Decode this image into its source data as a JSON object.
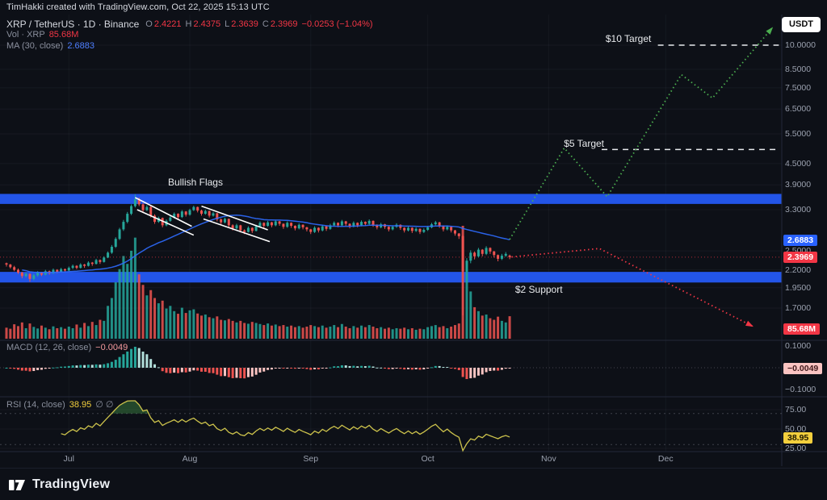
{
  "attribution": {
    "text": "TimHakki created with TradingView.com, Oct 22, 2025 15:13 UTC"
  },
  "header": {
    "symbol": "XRP / TetherUS · 1D · Binance",
    "ohlc": [
      {
        "k": "O",
        "v": "2.4221"
      },
      {
        "k": "H",
        "v": "2.4375"
      },
      {
        "k": "L",
        "v": "2.3639"
      },
      {
        "k": "C",
        "v": "2.3969"
      }
    ],
    "change": "−0.0253 (−1.04%)",
    "volume_label": "Vol · XRP",
    "volume_value": "85.68M",
    "ma_label": "MA (30, close)",
    "ma_value": "2.6883",
    "currency_button": "USDT"
  },
  "panes": {
    "macd": {
      "label": "MACD (12, 26, close)",
      "value": "−0.0049"
    },
    "rsi": {
      "label": "RSI (14, close)",
      "value": "38.95",
      "extra": "∅  ∅"
    }
  },
  "axes": {
    "price_ticks": [
      {
        "label": "10.0000",
        "value": 10
      },
      {
        "label": "8.5000",
        "value": 8.5
      },
      {
        "label": "7.5000",
        "value": 7.5
      },
      {
        "label": "6.5000",
        "value": 6.5
      },
      {
        "label": "5.5000",
        "value": 5.5
      },
      {
        "label": "4.5000",
        "value": 4.5
      },
      {
        "label": "3.9000",
        "value": 3.9
      },
      {
        "label": "3.3000",
        "value": 3.3
      },
      {
        "label": "2.5000",
        "value": 2.5
      },
      {
        "label": "2.2000",
        "value": 2.2
      },
      {
        "label": "1.9500",
        "value": 1.95
      },
      {
        "label": "1.7000",
        "value": 1.7
      }
    ],
    "price_badges": [
      {
        "label": "2.6883",
        "value": 2.6883,
        "bg": "#2962ff",
        "fg": "#ffffff"
      },
      {
        "label": "2.3969",
        "value": 2.3969,
        "bg": "#f23645",
        "fg": "#ffffff"
      }
    ],
    "volume_badge": {
      "label": "85.68M",
      "bg": "#f23645",
      "fg": "#ffffff"
    },
    "macd_ticks": [
      {
        "label": "0.1000",
        "value": 0.1
      },
      {
        "label": "−0.1000",
        "value": -0.1
      }
    ],
    "macd_badge": {
      "label": "−0.0049",
      "bg": "#fbc4c2",
      "fg": "#40181a"
    },
    "rsi_ticks": [
      {
        "label": "75.00",
        "value": 75
      },
      {
        "label": "50.00",
        "value": 50
      },
      {
        "label": "25.00",
        "value": 25
      }
    ],
    "rsi_badge": {
      "label": "38.95",
      "value": 38.95,
      "bg": "#f3cf3d",
      "fg": "#1c1600"
    },
    "time_ticks": [
      {
        "label": "Jul",
        "day": 16
      },
      {
        "label": "Aug",
        "day": 47
      },
      {
        "label": "Sep",
        "day": 78
      },
      {
        "label": "Oct",
        "day": 108
      },
      {
        "label": "Nov",
        "day": 139
      },
      {
        "label": "Dec",
        "day": 169
      }
    ]
  },
  "footer": {
    "brand": "TradingView"
  },
  "colors": {
    "up": "#26a69a",
    "down": "#ef5350",
    "accent_red": "#f23645",
    "accent_blue": "#2962ff",
    "band": "#2355e8",
    "projection_green": "#4caf50",
    "projection_red": "#f23645",
    "rsi_line": "#cdc34c",
    "ma_line": "#2e6bff",
    "target_dash": "#e8eaed"
  },
  "chart_data": {
    "type": "candlestick",
    "symbol": "XRP/USDT",
    "exchange": "Binance",
    "timeframe": "1D",
    "scale": "log",
    "date_range": [
      "2025-06-15",
      "2025-10-22"
    ],
    "visible_price_range": [
      1.5,
      11.5
    ],
    "last_price": 2.3969,
    "ma30_last": 2.6883,
    "volume_last_m": 85.68,
    "macd_last": -0.0049,
    "rsi_last": 38.95,
    "levels": {
      "resistance_band": [
        3.43,
        3.67
      ],
      "support_band": [
        2.02,
        2.17
      ],
      "target_high": {
        "price": 10,
        "from_day": 167,
        "to_day": 198
      },
      "target_mid": {
        "price": 4.95,
        "from_day": 152.6,
        "to_day": 198
      }
    },
    "annotations": {
      "bullish_flags": {
        "text": "Bullish Flags",
        "at": [
          41.4,
          3.97
        ]
      },
      "target10": {
        "text": "$10 Target",
        "at": [
          153.6,
          10.45
        ]
      },
      "target5": {
        "text": "$5 Target",
        "at": [
          142.9,
          5.15
        ]
      },
      "support2": {
        "text": "$2 Support",
        "at": [
          130.4,
          1.93
        ]
      },
      "flag_channels": [
        {
          "from": [
            33,
            3.58
          ],
          "to": [
            47.5,
            2.95
          ]
        },
        {
          "from": [
            33.5,
            3.3
          ],
          "to": [
            48,
            2.78
          ]
        },
        {
          "from": [
            50,
            3.38
          ],
          "to": [
            67,
            2.88
          ]
        },
        {
          "from": [
            50.5,
            3.1
          ],
          "to": [
            67.5,
            2.66
          ]
        }
      ],
      "green_projection": [
        [
          129,
          2.7
        ],
        [
          143,
          5.0
        ],
        [
          154,
          3.6
        ],
        [
          173,
          8.2
        ],
        [
          181,
          7.0
        ],
        [
          196.5,
          11.3
        ]
      ],
      "red_projection": [
        [
          129.5,
          2.4
        ],
        [
          152,
          2.54
        ],
        [
          191.5,
          1.5
        ]
      ]
    },
    "candles": [
      [
        2.3,
        2.31,
        2.25,
        2.28,
        42
      ],
      [
        2.28,
        2.29,
        2.22,
        2.24,
        38
      ],
      [
        2.24,
        2.26,
        2.18,
        2.2,
        55
      ],
      [
        2.2,
        2.22,
        2.14,
        2.16,
        48
      ],
      [
        2.16,
        2.17,
        2.08,
        2.11,
        62
      ],
      [
        2.11,
        2.16,
        2.09,
        2.14,
        40
      ],
      [
        2.14,
        2.15,
        2.03,
        2.07,
        58
      ],
      [
        2.07,
        2.14,
        2.05,
        2.12,
        45
      ],
      [
        2.12,
        2.18,
        2.1,
        2.16,
        39
      ],
      [
        2.16,
        2.17,
        2.11,
        2.13,
        50
      ],
      [
        2.13,
        2.2,
        2.12,
        2.18,
        42
      ],
      [
        2.18,
        2.19,
        2.13,
        2.15,
        36
      ],
      [
        2.15,
        2.22,
        2.14,
        2.2,
        47
      ],
      [
        2.2,
        2.21,
        2.15,
        2.17,
        40
      ],
      [
        2.17,
        2.23,
        2.16,
        2.21,
        44
      ],
      [
        2.21,
        2.22,
        2.17,
        2.19,
        38
      ],
      [
        2.19,
        2.25,
        2.18,
        2.23,
        46
      ],
      [
        2.23,
        2.28,
        2.21,
        2.26,
        40
      ],
      [
        2.26,
        2.27,
        2.21,
        2.23,
        54
      ],
      [
        2.23,
        2.3,
        2.22,
        2.28,
        42
      ],
      [
        2.28,
        2.29,
        2.23,
        2.26,
        60
      ],
      [
        2.26,
        2.33,
        2.25,
        2.31,
        48
      ],
      [
        2.31,
        2.32,
        2.26,
        2.29,
        64
      ],
      [
        2.29,
        2.37,
        2.28,
        2.35,
        52
      ],
      [
        2.35,
        2.36,
        2.29,
        2.32,
        72
      ],
      [
        2.32,
        2.41,
        2.31,
        2.39,
        68
      ],
      [
        2.39,
        2.49,
        2.38,
        2.47,
        125
      ],
      [
        2.47,
        2.6,
        2.45,
        2.57,
        155
      ],
      [
        2.57,
        2.74,
        2.55,
        2.71,
        215
      ],
      [
        2.71,
        2.92,
        2.69,
        2.89,
        265
      ],
      [
        2.89,
        3.08,
        2.86,
        3.04,
        315
      ],
      [
        3.04,
        3.25,
        3.01,
        3.21,
        285
      ],
      [
        3.21,
        3.42,
        3.18,
        3.38,
        335
      ],
      [
        3.38,
        3.66,
        3.35,
        3.54,
        385
      ],
      [
        3.54,
        3.58,
        3.38,
        3.42,
        245
      ],
      [
        3.42,
        3.45,
        3.25,
        3.29,
        205
      ],
      [
        3.29,
        3.4,
        3.27,
        3.36,
        165
      ],
      [
        3.36,
        3.38,
        3.13,
        3.17,
        185
      ],
      [
        3.17,
        3.2,
        3.0,
        3.04,
        155
      ],
      [
        3.04,
        3.15,
        3.02,
        3.12,
        135
      ],
      [
        3.12,
        3.13,
        2.93,
        2.97,
        145
      ],
      [
        2.97,
        3.09,
        2.95,
        3.06,
        115
      ],
      [
        3.06,
        3.16,
        3.04,
        3.13,
        125
      ],
      [
        3.13,
        3.24,
        3.11,
        3.21,
        105
      ],
      [
        3.21,
        3.22,
        3.1,
        3.14,
        95
      ],
      [
        3.14,
        3.29,
        3.12,
        3.26,
        118
      ],
      [
        3.26,
        3.27,
        3.15,
        3.19,
        98
      ],
      [
        3.19,
        3.32,
        3.17,
        3.29,
        108
      ],
      [
        3.29,
        3.39,
        3.27,
        3.36,
        112
      ],
      [
        3.36,
        3.37,
        3.24,
        3.28,
        96
      ],
      [
        3.28,
        3.3,
        3.17,
        3.21,
        88
      ],
      [
        3.21,
        3.3,
        3.19,
        3.27,
        92
      ],
      [
        3.27,
        3.28,
        3.13,
        3.17,
        82
      ],
      [
        3.17,
        3.25,
        3.15,
        3.22,
        78
      ],
      [
        3.22,
        3.23,
        3.05,
        3.09,
        85
      ],
      [
        3.09,
        3.11,
        2.99,
        3.03,
        72
      ],
      [
        3.03,
        3.13,
        3.01,
        3.1,
        70
      ],
      [
        3.1,
        3.11,
        2.93,
        2.97,
        75
      ],
      [
        2.97,
        2.99,
        2.87,
        2.91,
        68
      ],
      [
        2.91,
        3.0,
        2.89,
        2.97,
        62
      ],
      [
        2.97,
        2.98,
        2.83,
        2.87,
        68
      ],
      [
        2.87,
        2.89,
        2.8,
        2.84,
        60
      ],
      [
        2.84,
        2.95,
        2.83,
        2.92,
        57
      ],
      [
        2.92,
        2.93,
        2.82,
        2.86,
        64
      ],
      [
        2.86,
        2.98,
        2.85,
        2.95,
        60
      ],
      [
        2.95,
        3.05,
        2.93,
        3.02,
        56
      ],
      [
        3.02,
        3.03,
        2.92,
        2.96,
        52
      ],
      [
        2.96,
        3.06,
        2.94,
        3.03,
        58
      ],
      [
        3.03,
        3.04,
        2.93,
        2.97,
        50
      ],
      [
        2.97,
        3.08,
        2.95,
        3.05,
        54
      ],
      [
        3.05,
        3.06,
        2.96,
        3.0,
        48
      ],
      [
        3.0,
        3.01,
        2.9,
        2.94,
        52
      ],
      [
        2.94,
        3.05,
        2.92,
        3.02,
        46
      ],
      [
        3.02,
        3.03,
        2.92,
        2.96,
        50
      ],
      [
        2.96,
        2.97,
        2.87,
        2.91,
        44
      ],
      [
        2.91,
        3.01,
        2.89,
        2.98,
        48
      ],
      [
        2.98,
        2.99,
        2.89,
        2.93,
        42
      ],
      [
        2.93,
        2.94,
        2.85,
        2.89,
        46
      ],
      [
        2.89,
        2.9,
        2.8,
        2.84,
        52
      ],
      [
        2.84,
        2.95,
        2.82,
        2.92,
        48
      ],
      [
        2.92,
        2.93,
        2.83,
        2.87,
        44
      ],
      [
        2.87,
        2.98,
        2.85,
        2.95,
        50
      ],
      [
        2.95,
        2.96,
        2.86,
        2.9,
        42
      ],
      [
        2.9,
        3.0,
        2.88,
        2.97,
        46
      ],
      [
        2.97,
        3.05,
        2.95,
        3.02,
        52
      ],
      [
        3.02,
        3.03,
        2.93,
        2.97,
        44
      ],
      [
        2.97,
        3.08,
        2.95,
        3.05,
        56
      ],
      [
        3.05,
        3.06,
        2.96,
        3.0,
        46
      ],
      [
        3.0,
        3.01,
        2.91,
        2.95,
        40
      ],
      [
        2.95,
        3.05,
        2.93,
        3.02,
        48
      ],
      [
        3.02,
        3.03,
        2.93,
        2.97,
        42
      ],
      [
        2.97,
        3.07,
        2.95,
        3.04,
        50
      ],
      [
        3.04,
        3.05,
        2.96,
        3.0,
        44
      ],
      [
        3.0,
        3.09,
        2.98,
        3.06,
        52
      ],
      [
        3.06,
        3.07,
        2.94,
        2.98,
        46
      ],
      [
        2.98,
        2.99,
        2.89,
        2.93,
        40
      ],
      [
        2.93,
        3.02,
        2.91,
        2.99,
        44
      ],
      [
        2.99,
        3.0,
        2.9,
        2.94,
        38
      ],
      [
        2.94,
        2.95,
        2.85,
        2.89,
        42
      ],
      [
        2.89,
        2.97,
        2.87,
        2.94,
        36
      ],
      [
        2.94,
        3.01,
        2.92,
        2.98,
        40
      ],
      [
        2.98,
        2.99,
        2.88,
        2.92,
        38
      ],
      [
        2.92,
        2.93,
        2.83,
        2.87,
        42
      ],
      [
        2.87,
        2.95,
        2.85,
        2.92,
        36
      ],
      [
        2.92,
        2.93,
        2.82,
        2.86,
        40
      ],
      [
        2.86,
        2.93,
        2.84,
        2.9,
        34
      ],
      [
        2.9,
        2.91,
        2.8,
        2.84,
        38
      ],
      [
        2.84,
        2.91,
        2.82,
        2.88,
        36
      ],
      [
        2.88,
        2.96,
        2.86,
        2.93,
        44
      ],
      [
        2.93,
        3.02,
        2.91,
        2.99,
        48
      ],
      [
        2.99,
        3.06,
        2.97,
        3.03,
        52
      ],
      [
        3.03,
        3.04,
        2.92,
        2.96,
        44
      ],
      [
        2.96,
        2.97,
        2.85,
        2.89,
        48
      ],
      [
        2.89,
        2.97,
        2.87,
        2.94,
        40
      ],
      [
        2.94,
        2.95,
        2.83,
        2.87,
        46
      ],
      [
        2.87,
        2.88,
        2.77,
        2.81,
        52
      ],
      [
        2.81,
        2.82,
        2.71,
        2.76,
        58
      ],
      [
        2.76,
        2.78,
        1.62,
        2.18,
        430
      ],
      [
        2.18,
        2.38,
        2.05,
        2.34,
        260
      ],
      [
        2.34,
        2.51,
        2.3,
        2.47,
        180
      ],
      [
        2.47,
        2.49,
        2.36,
        2.41,
        120
      ],
      [
        2.41,
        2.55,
        2.39,
        2.52,
        105
      ],
      [
        2.52,
        2.53,
        2.41,
        2.45,
        88
      ],
      [
        2.45,
        2.58,
        2.43,
        2.55,
        92
      ],
      [
        2.55,
        2.56,
        2.45,
        2.49,
        78
      ],
      [
        2.49,
        2.5,
        2.39,
        2.43,
        72
      ],
      [
        2.43,
        2.44,
        2.33,
        2.37,
        84
      ],
      [
        2.37,
        2.45,
        2.35,
        2.42,
        68
      ],
      [
        2.42,
        2.48,
        2.4,
        2.45,
        62
      ],
      [
        2.4221,
        2.4375,
        2.3639,
        2.3969,
        85.68
      ]
    ]
  }
}
